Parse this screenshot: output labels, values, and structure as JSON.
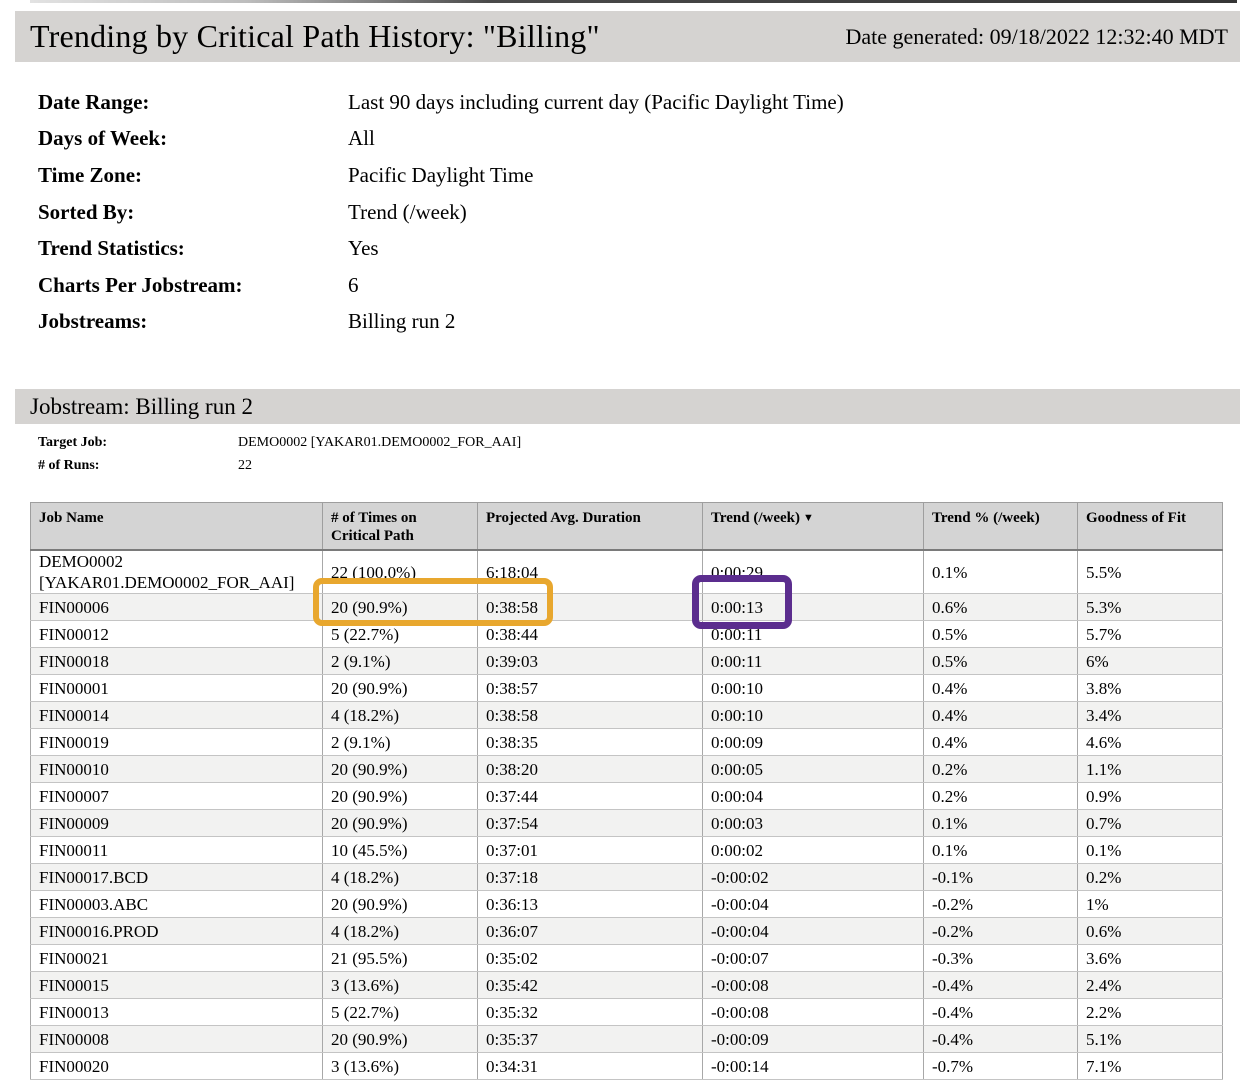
{
  "page": {
    "title": "Trending by Critical Path History: \"Billing\"",
    "date_generated": "Date generated: 09/18/2022 12:32:40 MDT"
  },
  "report_settings": {
    "date_range_label": "Date Range:",
    "date_range_value": "Last 90 days including current day (Pacific Daylight Time)",
    "days_of_week_label": "Days of Week:",
    "days_of_week_value": "All",
    "time_zone_label": "Time Zone:",
    "time_zone_value": "Pacific Daylight Time",
    "sorted_by_label": "Sorted By:",
    "sorted_by_value": "Trend (/week)",
    "trend_statistics_label": "Trend Statistics:",
    "trend_statistics_value": "Yes",
    "charts_per_jobstream_label": "Charts Per Jobstream:",
    "charts_per_jobstream_value": "6",
    "jobstreams_label": "Jobstreams:",
    "jobstreams_value": "Billing run 2"
  },
  "jobstream_section": {
    "header": "Jobstream: Billing run 2",
    "target_job_label": "Target Job:",
    "target_job_value": "DEMO0002 [YAKAR01.DEMO0002_FOR_AAI]",
    "runs_label": "# of Runs:",
    "runs_value": "22"
  },
  "table": {
    "columns": [
      {
        "label": "Job Name"
      },
      {
        "label": "# of Times on Critical Path"
      },
      {
        "label": "Projected Avg. Duration"
      },
      {
        "label": "Trend (/week)",
        "sort_indicator": "▼"
      },
      {
        "label": "Trend % (/week)"
      },
      {
        "label": "Goodness of Fit"
      }
    ],
    "rows": [
      {
        "job": "DEMO0002 [YAKAR01.DEMO0002_FOR_AAI]",
        "times": "22 (100.0%)",
        "duration": "6:18:04",
        "trend": "0:00:29",
        "trend_pct": "0.1%",
        "fit": "5.5%"
      },
      {
        "job": "FIN00006",
        "times": "20 (90.9%)",
        "duration": "0:38:58",
        "trend": "0:00:13",
        "trend_pct": "0.6%",
        "fit": "5.3%"
      },
      {
        "job": "FIN00012",
        "times": "5 (22.7%)",
        "duration": "0:38:44",
        "trend": "0:00:11",
        "trend_pct": "0.5%",
        "fit": "5.7%"
      },
      {
        "job": "FIN00018",
        "times": "2 (9.1%)",
        "duration": "0:39:03",
        "trend": "0:00:11",
        "trend_pct": "0.5%",
        "fit": "6%"
      },
      {
        "job": "FIN00001",
        "times": "20 (90.9%)",
        "duration": "0:38:57",
        "trend": "0:00:10",
        "trend_pct": "0.4%",
        "fit": "3.8%"
      },
      {
        "job": "FIN00014",
        "times": "4 (18.2%)",
        "duration": "0:38:58",
        "trend": "0:00:10",
        "trend_pct": "0.4%",
        "fit": "3.4%"
      },
      {
        "job": "FIN00019",
        "times": "2 (9.1%)",
        "duration": "0:38:35",
        "trend": "0:00:09",
        "trend_pct": "0.4%",
        "fit": "4.6%"
      },
      {
        "job": "FIN00010",
        "times": "20 (90.9%)",
        "duration": "0:38:20",
        "trend": "0:00:05",
        "trend_pct": "0.2%",
        "fit": "1.1%"
      },
      {
        "job": "FIN00007",
        "times": "20 (90.9%)",
        "duration": "0:37:44",
        "trend": "0:00:04",
        "trend_pct": "0.2%",
        "fit": "0.9%"
      },
      {
        "job": "FIN00009",
        "times": "20 (90.9%)",
        "duration": "0:37:54",
        "trend": "0:00:03",
        "trend_pct": "0.1%",
        "fit": "0.7%"
      },
      {
        "job": "FIN00011",
        "times": "10 (45.5%)",
        "duration": "0:37:01",
        "trend": "0:00:02",
        "trend_pct": "0.1%",
        "fit": "0.1%"
      },
      {
        "job": "FIN00017.BCD",
        "times": "4 (18.2%)",
        "duration": "0:37:18",
        "trend": "-0:00:02",
        "trend_pct": "-0.1%",
        "fit": "0.2%"
      },
      {
        "job": "FIN00003.ABC",
        "times": "20 (90.9%)",
        "duration": "0:36:13",
        "trend": "-0:00:04",
        "trend_pct": "-0.2%",
        "fit": "1%"
      },
      {
        "job": "FIN00016.PROD",
        "times": "4 (18.2%)",
        "duration": "0:36:07",
        "trend": "-0:00:04",
        "trend_pct": "-0.2%",
        "fit": "0.6%"
      },
      {
        "job": "FIN00021",
        "times": "21 (95.5%)",
        "duration": "0:35:02",
        "trend": "-0:00:07",
        "trend_pct": "-0.3%",
        "fit": "3.6%"
      },
      {
        "job": "FIN00015",
        "times": "3 (13.6%)",
        "duration": "0:35:42",
        "trend": "-0:00:08",
        "trend_pct": "-0.4%",
        "fit": "2.4%"
      },
      {
        "job": "FIN00013",
        "times": "5 (22.7%)",
        "duration": "0:35:32",
        "trend": "-0:00:08",
        "trend_pct": "-0.4%",
        "fit": "2.2%"
      },
      {
        "job": "FIN00008",
        "times": "20 (90.9%)",
        "duration": "0:35:37",
        "trend": "-0:00:09",
        "trend_pct": "-0.4%",
        "fit": "5.1%"
      },
      {
        "job": "FIN00020",
        "times": "3 (13.6%)",
        "duration": "0:34:31",
        "trend": "-0:00:14",
        "trend_pct": "-0.7%",
        "fit": "7.1%"
      }
    ]
  },
  "annotations": {
    "orange_box_color": "#e8a72e",
    "purple_box_color": "#5b2d8e"
  }
}
